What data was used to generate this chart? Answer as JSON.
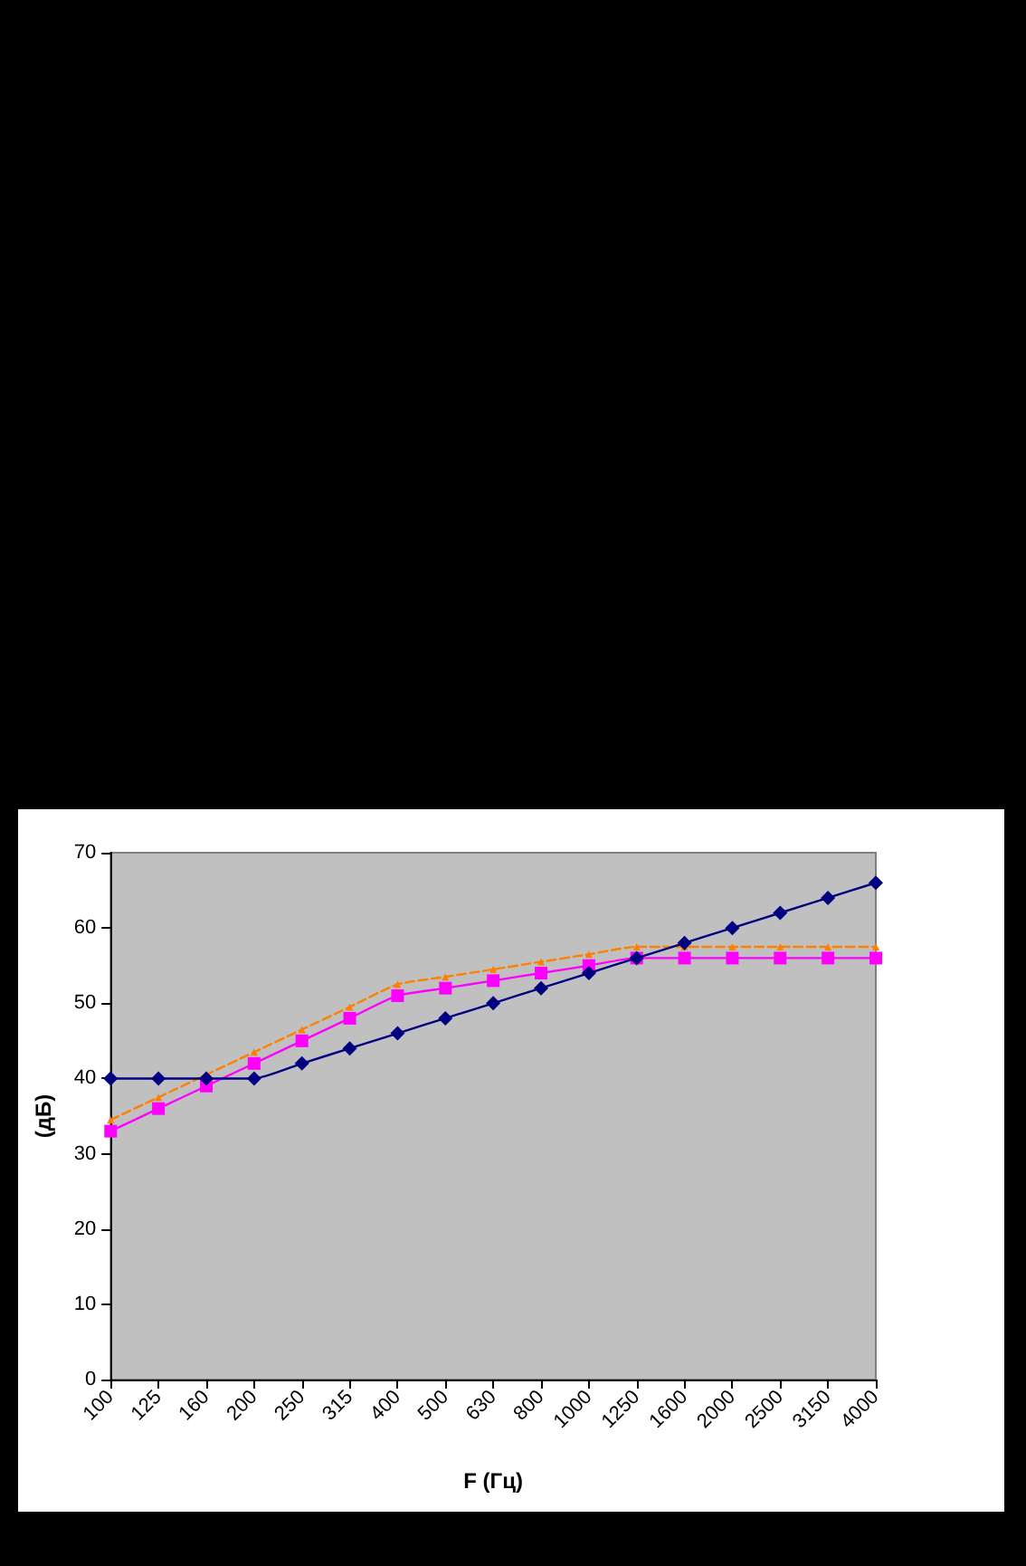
{
  "chart_data": {
    "type": "line",
    "xlabel": "F (Гц)",
    "ylabel": "(дБ)",
    "categories": [
      "100",
      "125",
      "160",
      "200",
      "250",
      "315",
      "400",
      "500",
      "630",
      "800",
      "1000",
      "1250",
      "1600",
      "2000",
      "2500",
      "3150",
      "4000"
    ],
    "series": [
      {
        "color": "#000080",
        "marker": "diamond",
        "line_style": "solid",
        "values": [
          40,
          40,
          40,
          40,
          42,
          44,
          46,
          48,
          50,
          52,
          54,
          56,
          58,
          60,
          62,
          64,
          66
        ]
      },
      {
        "color": "#ff00ff",
        "marker": "square",
        "line_style": "solid",
        "values": [
          33,
          36,
          39,
          42,
          45,
          48,
          51,
          52,
          53,
          54,
          55,
          56,
          56,
          56,
          56,
          56,
          56
        ]
      },
      {
        "color": "#ff8000",
        "marker": "triangle",
        "line_style": "dashed",
        "values": [
          34.5,
          37.5,
          40.5,
          43.5,
          46.5,
          49.5,
          52.5,
          53.5,
          54.5,
          55.5,
          56.5,
          57.5,
          57.5,
          57.5,
          57.5,
          57.5,
          57.5
        ]
      }
    ],
    "ylim": [
      0,
      70
    ],
    "yticks": [
      0,
      10,
      20,
      30,
      40,
      50,
      60,
      70
    ],
    "grid": false
  }
}
